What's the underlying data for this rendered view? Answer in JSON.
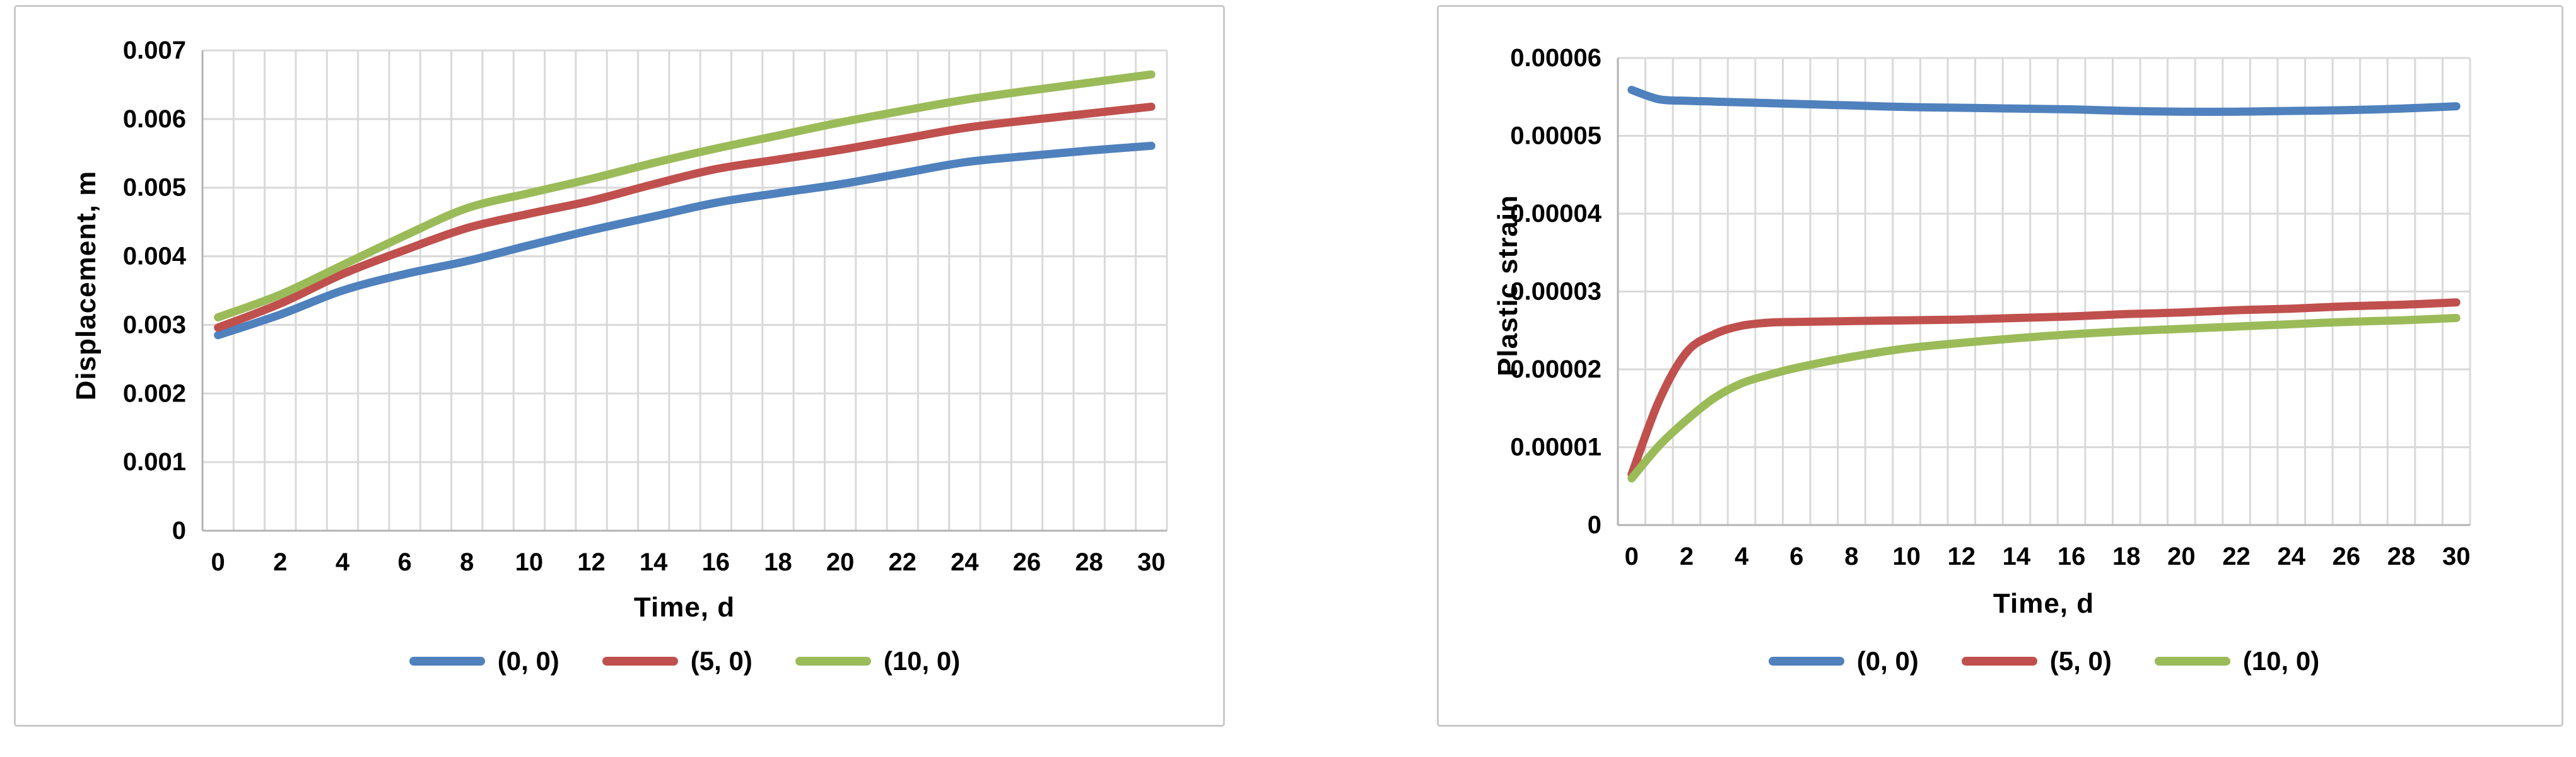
{
  "chart_data": [
    {
      "type": "line",
      "title": "",
      "xlabel": "Time, d",
      "ylabel": "Displacement, m",
      "xlim": [
        0,
        30
      ],
      "ylim": [
        0,
        0.007
      ],
      "x_slots": 31,
      "grid": true,
      "legend_position": "bottom",
      "grid_color": "#d9d9d9",
      "axis_color": "#b3b3b3",
      "x_ticks": [
        {
          "value": 0,
          "label": "0"
        },
        {
          "value": 2,
          "label": "2"
        },
        {
          "value": 4,
          "label": "4"
        },
        {
          "value": 6,
          "label": "6"
        },
        {
          "value": 8,
          "label": "8"
        },
        {
          "value": 10,
          "label": "10"
        },
        {
          "value": 12,
          "label": "12"
        },
        {
          "value": 14,
          "label": "14"
        },
        {
          "value": 16,
          "label": "16"
        },
        {
          "value": 18,
          "label": "18"
        },
        {
          "value": 20,
          "label": "20"
        },
        {
          "value": 22,
          "label": "22"
        },
        {
          "value": 24,
          "label": "24"
        },
        {
          "value": 26,
          "label": "26"
        },
        {
          "value": 28,
          "label": "28"
        },
        {
          "value": 30,
          "label": "30"
        }
      ],
      "y_ticks": [
        "0",
        "0.001",
        "0.002",
        "0.003",
        "0.004",
        "0.005",
        "0.006",
        "0.007"
      ],
      "series": [
        {
          "name": "(0, 0)",
          "color": "#4F81BD",
          "x": [
            0,
            2,
            4,
            6,
            8,
            10,
            12,
            14,
            16,
            18,
            20,
            22,
            24,
            26,
            28,
            30
          ],
          "values": [
            0.00285,
            0.00315,
            0.0035,
            0.00374,
            0.00393,
            0.00416,
            0.00438,
            0.00458,
            0.00478,
            0.00492,
            0.00505,
            0.00521,
            0.00537,
            0.00546,
            0.00554,
            0.00561
          ]
        },
        {
          "name": "(5, 0)",
          "color": "#C0504D",
          "x": [
            0,
            2,
            4,
            6,
            8,
            10,
            12,
            14,
            16,
            18,
            20,
            22,
            24,
            26,
            28,
            30
          ],
          "values": [
            0.00296,
            0.00331,
            0.00374,
            0.00409,
            0.00441,
            0.00462,
            0.00481,
            0.00505,
            0.00527,
            0.00541,
            0.00555,
            0.00571,
            0.00587,
            0.00598,
            0.00608,
            0.00618
          ]
        },
        {
          "name": "(10, 0)",
          "color": "#9BBB59",
          "x": [
            0,
            2,
            4,
            6,
            8,
            10,
            12,
            14,
            16,
            18,
            20,
            22,
            24,
            26,
            28,
            30
          ],
          "values": [
            0.00311,
            0.00344,
            0.00387,
            0.0043,
            0.0047,
            0.00492,
            0.00513,
            0.00536,
            0.00557,
            0.00576,
            0.00595,
            0.00612,
            0.00628,
            0.00641,
            0.00653,
            0.00665
          ]
        }
      ]
    },
    {
      "type": "line",
      "title": "",
      "xlabel": "Time, d",
      "ylabel": "Plastic strain",
      "xlim": [
        0,
        30
      ],
      "ylim": [
        0,
        6e-05
      ],
      "x_slots": 31,
      "grid": true,
      "legend_position": "bottom",
      "grid_color": "#d9d9d9",
      "axis_color": "#b3b3b3",
      "x_ticks": [
        {
          "value": 0,
          "label": "0"
        },
        {
          "value": 2,
          "label": "2"
        },
        {
          "value": 4,
          "label": "4"
        },
        {
          "value": 6,
          "label": "6"
        },
        {
          "value": 8,
          "label": "8"
        },
        {
          "value": 10,
          "label": "10"
        },
        {
          "value": 12,
          "label": "12"
        },
        {
          "value": 14,
          "label": "14"
        },
        {
          "value": 16,
          "label": "16"
        },
        {
          "value": 18,
          "label": "18"
        },
        {
          "value": 20,
          "label": "20"
        },
        {
          "value": 22,
          "label": "22"
        },
        {
          "value": 24,
          "label": "24"
        },
        {
          "value": 26,
          "label": "26"
        },
        {
          "value": 28,
          "label": "28"
        },
        {
          "value": 30,
          "label": "30"
        }
      ],
      "y_ticks": [
        "0",
        "0.00001",
        "0.00002",
        "0.00003",
        "0.00004",
        "0.00005",
        "0.00006"
      ],
      "series": [
        {
          "name": "(0, 0)",
          "color": "#4F81BD",
          "x": [
            0,
            1,
            2,
            3,
            4,
            5,
            6,
            8,
            10,
            12,
            14,
            16,
            18,
            20,
            22,
            24,
            26,
            28,
            30
          ],
          "values": [
            5.59e-05,
            5.47e-05,
            5.45e-05,
            5.44e-05,
            5.43e-05,
            5.42e-05,
            5.41e-05,
            5.39e-05,
            5.37e-05,
            5.36e-05,
            5.35e-05,
            5.34e-05,
            5.32e-05,
            5.31e-05,
            5.31e-05,
            5.32e-05,
            5.33e-05,
            5.35e-05,
            5.38e-05
          ]
        },
        {
          "name": "(5, 0)",
          "color": "#C0504D",
          "x": [
            0,
            1,
            2,
            3,
            4,
            5,
            6,
            8,
            10,
            12,
            14,
            16,
            18,
            20,
            22,
            24,
            26,
            28,
            30
          ],
          "values": [
            6.5e-06,
            1.6e-05,
            2.22e-05,
            2.45e-05,
            2.56e-05,
            2.6e-05,
            2.61e-05,
            2.62e-05,
            2.63e-05,
            2.64e-05,
            2.66e-05,
            2.68e-05,
            2.71e-05,
            2.73e-05,
            2.76e-05,
            2.78e-05,
            2.81e-05,
            2.83e-05,
            2.86e-05
          ]
        },
        {
          "name": "(10, 0)",
          "color": "#9BBB59",
          "x": [
            0,
            1,
            2,
            3,
            4,
            5,
            6,
            8,
            10,
            12,
            14,
            16,
            18,
            20,
            22,
            24,
            26,
            28,
            30
          ],
          "values": [
            6e-06,
            1.02e-05,
            1.35e-05,
            1.63e-05,
            1.82e-05,
            1.93e-05,
            2.02e-05,
            2.16e-05,
            2.27e-05,
            2.34e-05,
            2.4e-05,
            2.45e-05,
            2.49e-05,
            2.52e-05,
            2.55e-05,
            2.58e-05,
            2.61e-05,
            2.63e-05,
            2.66e-05
          ]
        }
      ]
    }
  ]
}
